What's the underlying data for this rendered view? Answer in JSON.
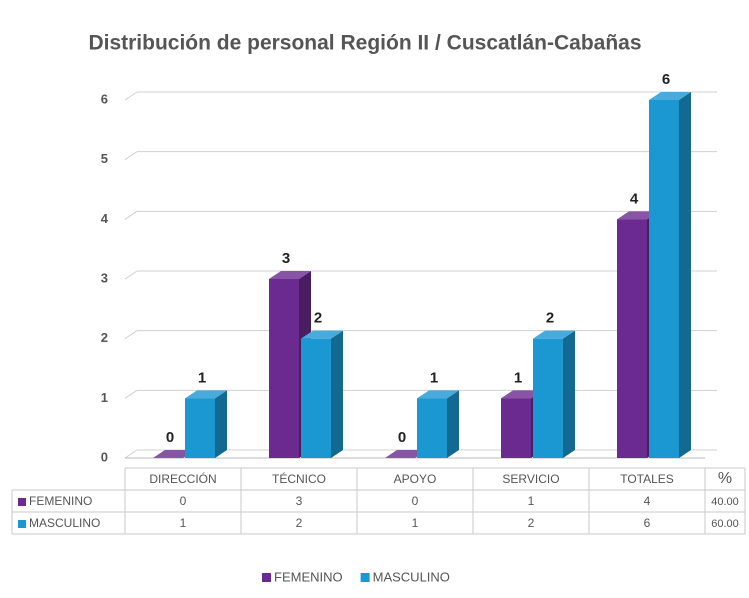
{
  "chart_data": {
    "type": "bar3d",
    "title": "Distribución de personal Región II /  Cuscatlán-Cabañas",
    "categories": [
      "DIRECCIÓN",
      "TÉCNICO",
      "APOYO",
      "SERVICIO",
      "TOTALES"
    ],
    "series": [
      {
        "name": "FEMENINO",
        "color": "#6b2a8f",
        "values": [
          0,
          3,
          0,
          1,
          4
        ],
        "percent": {
          "value": 40,
          "label": "40.00"
        }
      },
      {
        "name": "MASCULINO",
        "color": "#1b97d2",
        "values": [
          1,
          2,
          1,
          2,
          6
        ],
        "percent": {
          "value": 60,
          "label": "60.00"
        }
      }
    ],
    "percent_header": "%",
    "ylim": [
      0,
      6
    ],
    "yticks": [
      0,
      1,
      2,
      3,
      4,
      5,
      6
    ],
    "grid": true,
    "legend": "bottom"
  }
}
